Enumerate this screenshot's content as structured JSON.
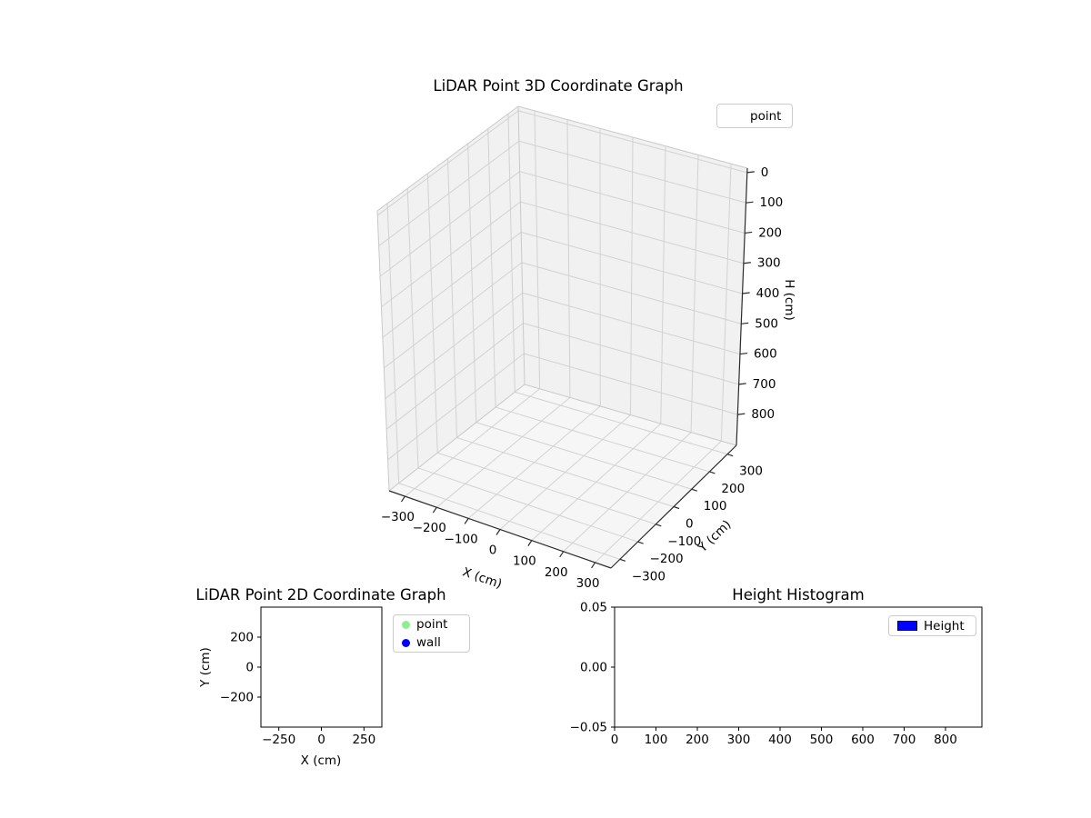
{
  "figure": {
    "background": "#ffffff",
    "text_color": "#000000"
  },
  "chart_data": [
    {
      "id": "plot3d",
      "type": "scatter3d",
      "title": "LiDAR Point 3D Coordinate Graph",
      "xlabel": "X (cm)",
      "ylabel": "Y (cm)",
      "zlabel": "H (cm)",
      "x_ticks": {
        "values": [
          -300,
          -200,
          -100,
          0,
          100,
          200,
          300
        ],
        "labels": [
          "−300",
          "−200",
          "−100",
          "0",
          "100",
          "200",
          "300"
        ]
      },
      "y_ticks": {
        "values": [
          300,
          200,
          100,
          0,
          -100,
          -200,
          -300
        ],
        "labels": [
          "300",
          "200",
          "100",
          "0",
          "−100",
          "−200",
          "−300"
        ]
      },
      "z_ticks": {
        "values": [
          0,
          100,
          200,
          300,
          400,
          500,
          600,
          700,
          800
        ],
        "labels": [
          "0",
          "100",
          "200",
          "300",
          "400",
          "500",
          "600",
          "700",
          "800"
        ]
      },
      "xlim": [
        -350,
        350
      ],
      "ylim": [
        -350,
        350
      ],
      "zlim": [
        0,
        800
      ],
      "z_inverted": true,
      "grid": true,
      "pane_color": "#f1f1f2",
      "floor_color": "#f6f6f6",
      "grid_color": "#d2d2d2",
      "legend": {
        "location": "upper right",
        "entries": [
          {
            "label": "point",
            "marker": "none",
            "color": null
          }
        ]
      },
      "series": [
        {
          "name": "point",
          "points": []
        }
      ]
    },
    {
      "id": "plot2d",
      "type": "scatter",
      "title": "LiDAR Point 2D Coordinate Graph",
      "xlabel": "X (cm)",
      "ylabel": "Y (cm)",
      "x_ticks": {
        "values": [
          -250,
          0,
          250
        ],
        "labels": [
          "−250",
          "0",
          "250"
        ]
      },
      "y_ticks": {
        "values": [
          200,
          0,
          -200
        ],
        "labels": [
          "200",
          "0",
          "−200"
        ]
      },
      "xlim": [
        -355,
        355
      ],
      "ylim": [
        -400,
        400
      ],
      "grid": false,
      "legend": {
        "location": "outside right",
        "entries": [
          {
            "label": "point",
            "marker": "circle",
            "color": "#90ee90"
          },
          {
            "label": "wall",
            "marker": "circle",
            "color": "#0000ff"
          }
        ]
      },
      "series": [
        {
          "name": "point",
          "color": "#90ee90",
          "points": []
        },
        {
          "name": "wall",
          "color": "#0000ff",
          "points": []
        }
      ]
    },
    {
      "id": "histogram",
      "type": "bar",
      "title": "Height Histogram",
      "xlabel": "",
      "ylabel": "",
      "x_ticks": {
        "values": [
          0,
          100,
          200,
          300,
          400,
          500,
          600,
          700,
          800
        ],
        "labels": [
          "0",
          "100",
          "200",
          "300",
          "400",
          "500",
          "600",
          "700",
          "800"
        ]
      },
      "y_ticks": {
        "values": [
          0.05,
          0.0,
          -0.05
        ],
        "labels": [
          "0.05",
          "0.00",
          "−0.05"
        ]
      },
      "xlim": [
        0,
        888
      ],
      "ylim": [
        -0.05,
        0.05
      ],
      "grid": false,
      "legend": {
        "location": "upper right",
        "entries": [
          {
            "label": "Height",
            "marker": "rect",
            "color": "#0000ff"
          }
        ]
      },
      "values": []
    }
  ]
}
